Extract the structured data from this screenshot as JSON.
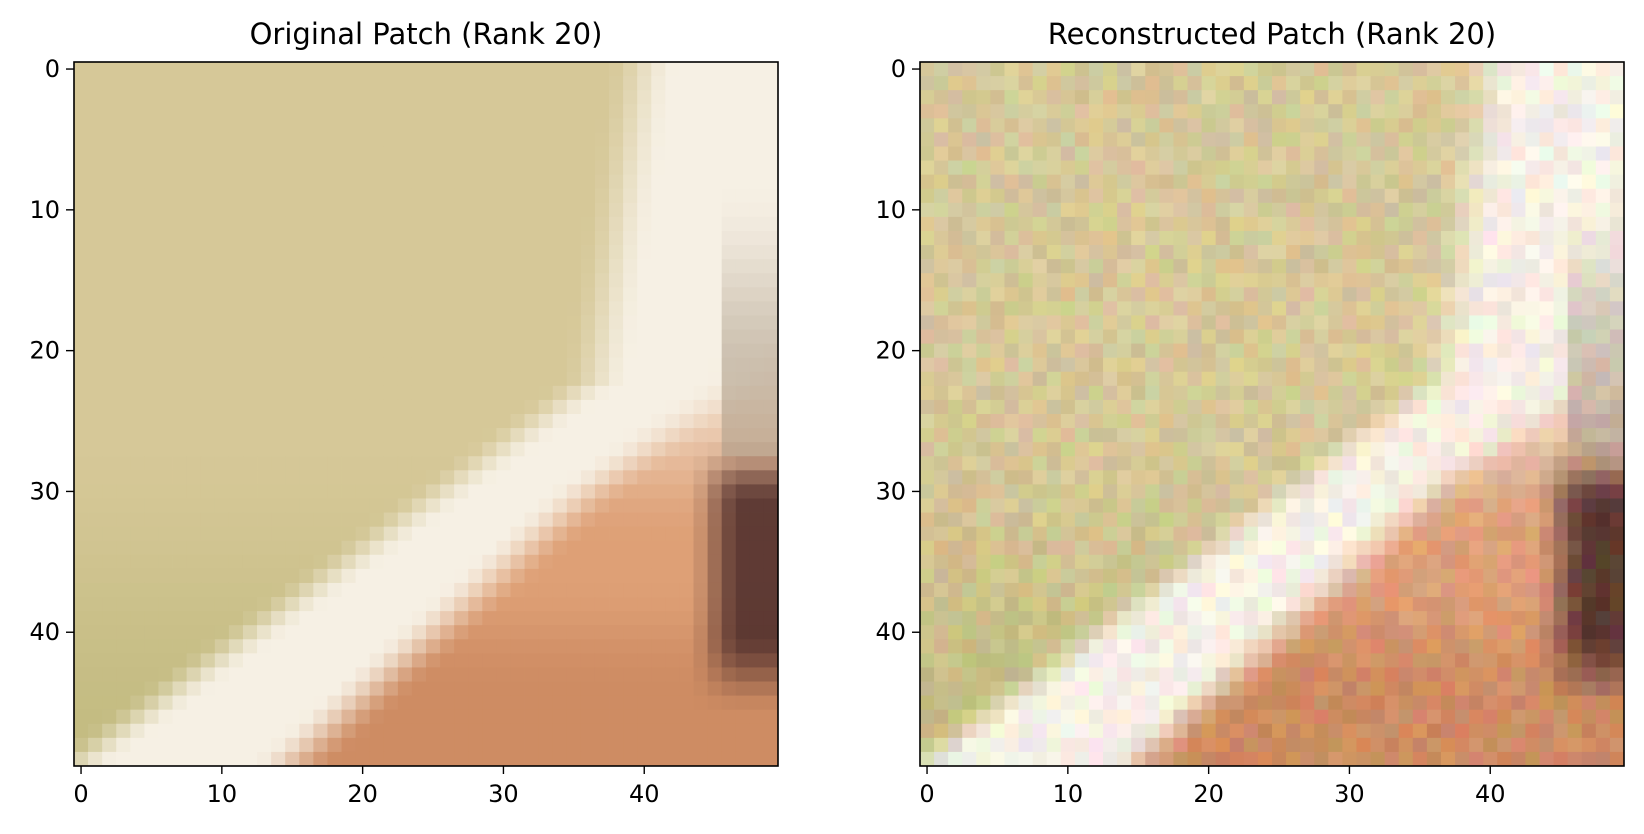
{
  "chart_data": [
    {
      "type": "heatmap",
      "title": "Original Patch (Rank 20)",
      "xlabel": "",
      "ylabel": "",
      "xlim": [
        -0.5,
        49.5
      ],
      "ylim": [
        49.5,
        -0.5
      ],
      "xticks": [
        0,
        10,
        20,
        30,
        40
      ],
      "yticks": [
        0,
        10,
        20,
        30,
        40
      ],
      "grid": false,
      "image": "50x50 RGB patch: khaki background with a white curved band from lower-left to upper-right, brown/dark region at right edge"
    },
    {
      "type": "heatmap",
      "title": "Reconstructed Patch (Rank 20)",
      "xlabel": "",
      "ylabel": "",
      "xlim": [
        -0.5,
        49.5
      ],
      "ylim": [
        49.5,
        -0.5
      ],
      "xticks": [
        0,
        10,
        20,
        30,
        40
      ],
      "yticks": [
        0,
        10,
        20,
        30,
        40
      ],
      "grid": false,
      "image": "50x50 RGB rank-20 reconstruction: same structure with pixel noise"
    }
  ]
}
